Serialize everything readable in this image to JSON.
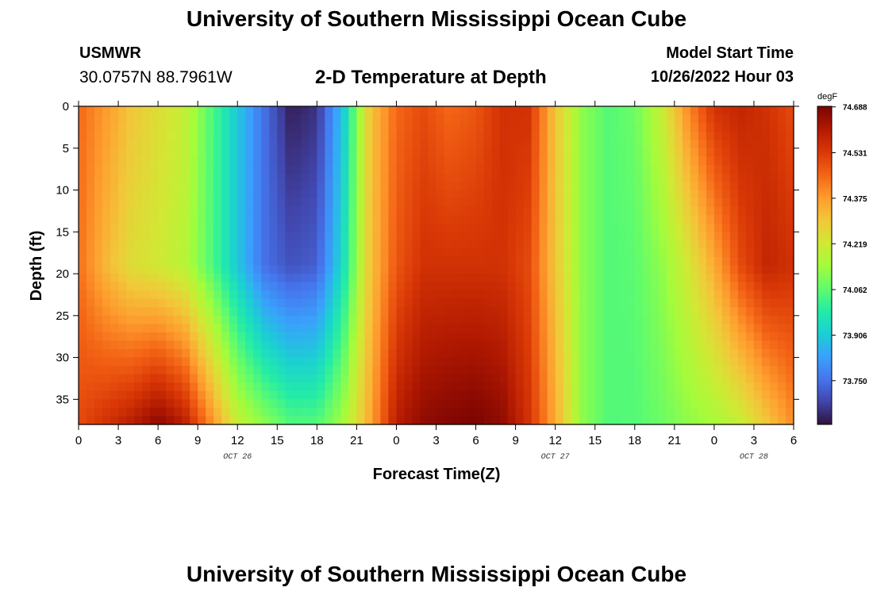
{
  "header": {
    "title": "University of Southern Mississippi Ocean Cube",
    "station": "USMWR",
    "coords": "30.0757N  88.7961W",
    "plot_title": "2-D Temperature at Depth",
    "model_label": "Model Start Time",
    "model_time": "10/26/2022 Hour 03"
  },
  "footer": {
    "title": "University of Southern Mississippi Ocean Cube"
  },
  "chart_data": {
    "type": "heatmap",
    "title": "2-D Temperature at Depth",
    "xlabel": "Forecast Time(Z)",
    "ylabel": "Depth (ft)",
    "x_ticks": [
      {
        "label": "0",
        "hour": 0
      },
      {
        "label": "3",
        "hour": 3
      },
      {
        "label": "6",
        "hour": 6
      },
      {
        "label": "9",
        "hour": 9
      },
      {
        "label": "12",
        "hour": 12
      },
      {
        "label": "15",
        "hour": 15
      },
      {
        "label": "18",
        "hour": 18
      },
      {
        "label": "21",
        "hour": 21
      },
      {
        "label": "0",
        "hour": 24
      },
      {
        "label": "3",
        "hour": 27
      },
      {
        "label": "6",
        "hour": 30
      },
      {
        "label": "9",
        "hour": 33
      },
      {
        "label": "12",
        "hour": 36
      },
      {
        "label": "15",
        "hour": 39
      },
      {
        "label": "18",
        "hour": 42
      },
      {
        "label": "21",
        "hour": 45
      },
      {
        "label": "0",
        "hour": 48
      },
      {
        "label": "3",
        "hour": 51
      },
      {
        "label": "6",
        "hour": 54
      }
    ],
    "date_labels": [
      {
        "label": "OCT 26",
        "hour": 12
      },
      {
        "label": "OCT 27",
        "hour": 36
      },
      {
        "label": "OCT 28",
        "hour": 51
      }
    ],
    "xlim": [
      0,
      54
    ],
    "y_ticks": [
      0,
      5,
      10,
      15,
      20,
      25,
      30,
      35
    ],
    "ylim": [
      0,
      38
    ],
    "colorbar": {
      "units": "degF",
      "ticks": [
        "74.688",
        "74.531",
        "74.375",
        "74.219",
        "74.062",
        "73.906",
        "73.750"
      ],
      "range": [
        73.6,
        74.69
      ],
      "colors": [
        "#30123b",
        "#4145ab",
        "#4675ed",
        "#39a2fc",
        "#1bcfd4",
        "#24eca6",
        "#61fc6c",
        "#a4fc3b",
        "#d1e834",
        "#f3c63a",
        "#fe9b2d",
        "#f36315",
        "#d93806",
        "#b11901",
        "#7a0402"
      ]
    },
    "columns": [
      {
        "hour": 0,
        "surface": 74.45,
        "mid": 74.44,
        "bottom": 74.5
      },
      {
        "hour": 2,
        "surface": 74.38,
        "mid": 74.33,
        "bottom": 74.55
      },
      {
        "hour": 4,
        "surface": 74.3,
        "mid": 74.25,
        "bottom": 74.6
      },
      {
        "hour": 6,
        "surface": 74.25,
        "mid": 74.22,
        "bottom": 74.67
      },
      {
        "hour": 8,
        "surface": 74.2,
        "mid": 74.18,
        "bottom": 74.6
      },
      {
        "hour": 10,
        "surface": 74.05,
        "mid": 74.05,
        "bottom": 74.4
      },
      {
        "hour": 12,
        "surface": 73.9,
        "mid": 73.9,
        "bottom": 74.2
      },
      {
        "hour": 14,
        "surface": 73.75,
        "mid": 73.75,
        "bottom": 74.12
      },
      {
        "hour": 16,
        "surface": 73.62,
        "mid": 73.7,
        "bottom": 74.05
      },
      {
        "hour": 18,
        "surface": 73.65,
        "mid": 73.72,
        "bottom": 74.05
      },
      {
        "hour": 20,
        "surface": 73.9,
        "mid": 73.95,
        "bottom": 74.15
      },
      {
        "hour": 22,
        "surface": 74.3,
        "mid": 74.3,
        "bottom": 74.35
      },
      {
        "hour": 24,
        "surface": 74.45,
        "mid": 74.48,
        "bottom": 74.6
      },
      {
        "hour": 26,
        "surface": 74.5,
        "mid": 74.55,
        "bottom": 74.66
      },
      {
        "hour": 28,
        "surface": 74.45,
        "mid": 74.55,
        "bottom": 74.68
      },
      {
        "hour": 30,
        "surface": 74.48,
        "mid": 74.55,
        "bottom": 74.69
      },
      {
        "hour": 32,
        "surface": 74.55,
        "mid": 74.55,
        "bottom": 74.66
      },
      {
        "hour": 34,
        "surface": 74.55,
        "mid": 74.5,
        "bottom": 74.55
      },
      {
        "hour": 36,
        "surface": 74.3,
        "mid": 74.3,
        "bottom": 74.35
      },
      {
        "hour": 38,
        "surface": 74.12,
        "mid": 74.12,
        "bottom": 74.12
      },
      {
        "hour": 40,
        "surface": 74.05,
        "mid": 74.05,
        "bottom": 74.05
      },
      {
        "hour": 42,
        "surface": 74.08,
        "mid": 74.06,
        "bottom": 74.05
      },
      {
        "hour": 44,
        "surface": 74.2,
        "mid": 74.12,
        "bottom": 74.08
      },
      {
        "hour": 46,
        "surface": 74.4,
        "mid": 74.22,
        "bottom": 74.12
      },
      {
        "hour": 48,
        "surface": 74.55,
        "mid": 74.35,
        "bottom": 74.15
      },
      {
        "hour": 50,
        "surface": 74.58,
        "mid": 74.5,
        "bottom": 74.2
      },
      {
        "hour": 52,
        "surface": 74.55,
        "mid": 74.58,
        "bottom": 74.3
      },
      {
        "hour": 54,
        "surface": 74.5,
        "mid": 74.55,
        "bottom": 74.4
      }
    ]
  }
}
